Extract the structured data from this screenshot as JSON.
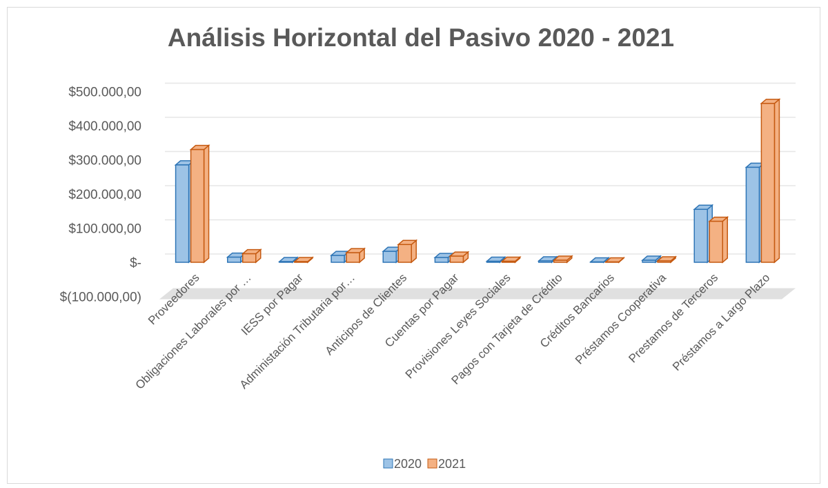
{
  "chart_data": {
    "type": "bar",
    "title": "Análisis Horizontal del Pasivo 2020 - 2021",
    "categories": [
      "Proveedores",
      "Obligaciones Laborales por …",
      "IESS por Pagar",
      "Administación Tributaria por…",
      "Anticipos de Clientes",
      "Cuentas por Pagar",
      "Provisiones Leyes Sociales",
      "Pagos con Tarjeta de Crédito",
      "Créditos Bancarios",
      "Préstamos Cooperativa",
      "Prestamos de Terceros",
      "Préstamos a Largo Plazo"
    ],
    "series": [
      {
        "name": "2020",
        "color": "#9dc3e6",
        "values": [
          285000,
          15000,
          2000,
          20000,
          32000,
          14000,
          3000,
          4000,
          1000,
          6000,
          155000,
          278000
        ]
      },
      {
        "name": "2021",
        "color": "#f4b183",
        "values": [
          330000,
          25000,
          2000,
          28000,
          52000,
          18000,
          3000,
          6000,
          1000,
          4000,
          120000,
          465000
        ]
      }
    ],
    "ylim": [
      -100000,
      500000
    ],
    "yticks": [
      {
        "value": -100000,
        "label": "$(100.000,00)"
      },
      {
        "value": 0,
        "label": "$-"
      },
      {
        "value": 100000,
        "label": "$100.000,00"
      },
      {
        "value": 200000,
        "label": "$200.000,00"
      },
      {
        "value": 300000,
        "label": "$300.000,00"
      },
      {
        "value": 400000,
        "label": "$400.000,00"
      },
      {
        "value": 500000,
        "label": "$500.000,00"
      }
    ],
    "grid": true,
    "legend": "bottom"
  }
}
